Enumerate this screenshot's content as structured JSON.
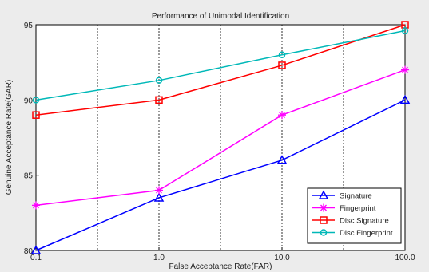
{
  "chart_data": {
    "type": "line",
    "title": "Performance of Unimodal Identification",
    "xlabel": "False Acceptance Rate(FAR)",
    "ylabel": "Genuine Acceptance Rate(GAR)",
    "x": [
      0.1,
      1.0,
      10.0,
      100.0
    ],
    "x_tick_labels": [
      "0.1",
      "1.0",
      "10.0",
      "100.0"
    ],
    "x_scale": "log",
    "y_ticks": [
      80,
      85,
      90,
      95
    ],
    "ylim": [
      80,
      95
    ],
    "grid": "vertical dashed",
    "legend_position": "bottom-right",
    "series": [
      {
        "name": "Signature",
        "values": [
          80.0,
          83.5,
          86.0,
          90.0
        ],
        "color": "#0000ff",
        "marker": "triangle"
      },
      {
        "name": "Fingerprint",
        "values": [
          83.0,
          84.0,
          89.0,
          92.0
        ],
        "color": "#ff00ff",
        "marker": "star"
      },
      {
        "name": "Disc Signature",
        "values": [
          89.0,
          90.0,
          92.3,
          95.0
        ],
        "color": "#ff0000",
        "marker": "square"
      },
      {
        "name": "Disc Fingerprint",
        "values": [
          90.0,
          91.3,
          93.0,
          94.6
        ],
        "color": "#00b8b8",
        "marker": "circle"
      }
    ]
  }
}
